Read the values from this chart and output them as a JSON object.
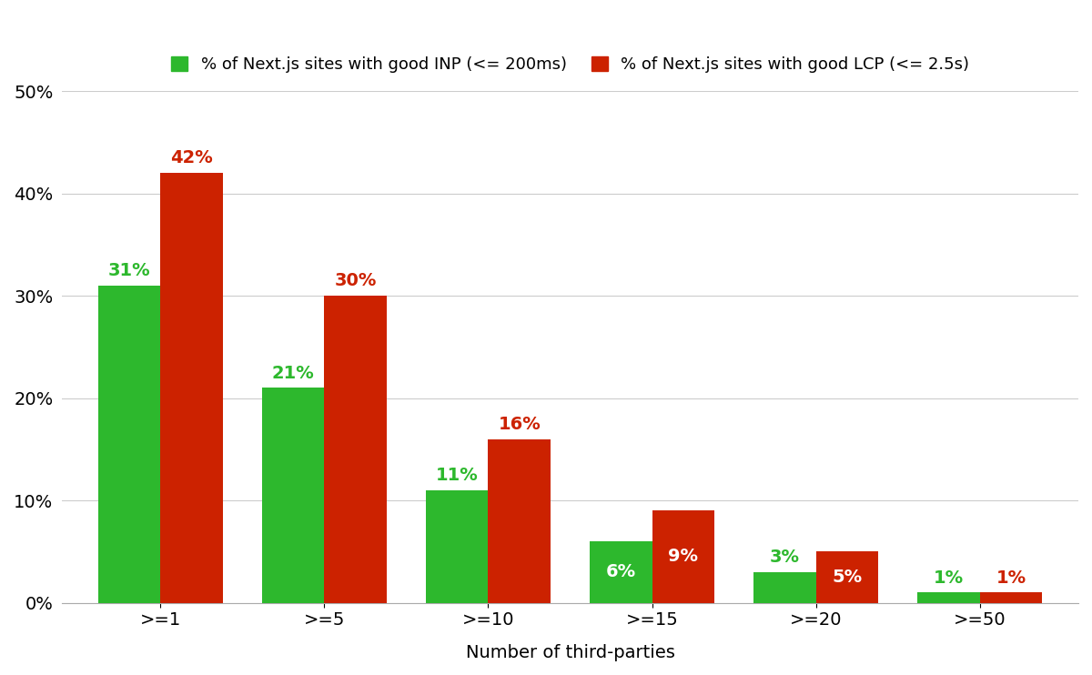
{
  "categories": [
    ">=1",
    ">=5",
    ">=10",
    ">=15",
    ">=20",
    ">=50"
  ],
  "inp_values": [
    31,
    21,
    11,
    6,
    3,
    1
  ],
  "lcp_values": [
    42,
    30,
    16,
    9,
    5,
    1
  ],
  "inp_color": "#2db82d",
  "lcp_color": "#cc2200",
  "background_color": "#ffffff",
  "grid_color": "#cccccc",
  "xlabel": "Number of third-parties",
  "ylim": [
    0,
    50
  ],
  "yticks": [
    0,
    10,
    20,
    30,
    40,
    50
  ],
  "legend_inp": "% of Next.js sites with good INP (<= 200ms)",
  "legend_lcp": "% of Next.js sites with good LCP (<= 2.5s)",
  "bar_width": 0.38,
  "label_fontsize": 14,
  "tick_fontsize": 14,
  "legend_fontsize": 13,
  "annotation_fontsize": 14,
  "inp_label_inside": [
    false,
    false,
    false,
    true,
    false,
    false
  ],
  "lcp_label_inside": [
    false,
    false,
    false,
    true,
    true,
    false
  ]
}
